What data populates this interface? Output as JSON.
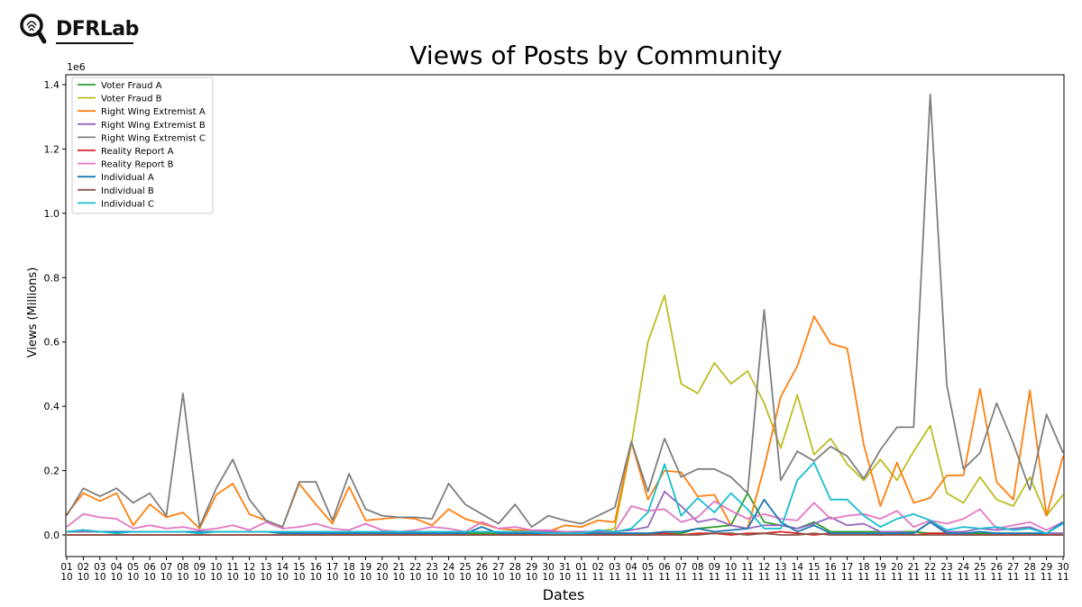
{
  "brand": {
    "name": "DFRLab"
  },
  "chart_data": {
    "type": "line",
    "title": "Views of Posts by Community",
    "xlabel": "Dates",
    "ylabel": "Views (Millions)",
    "y_offset_label": "1e6",
    "ylim": [
      0,
      1.42
    ],
    "yticks": [
      "0.0",
      "0.2",
      "0.4",
      "0.6",
      "0.8",
      "1.0",
      "1.2",
      "1.4"
    ],
    "ytick_values": [
      0,
      0.2,
      0.4,
      0.6,
      0.8,
      1.0,
      1.2,
      1.4
    ],
    "legend_position": "top-left",
    "grid": false,
    "categories": [
      "01\n10",
      "02\n10",
      "03\n10",
      "04\n10",
      "05\n10",
      "06\n10",
      "07\n10",
      "08\n10",
      "09\n10",
      "10\n10",
      "11\n10",
      "12\n10",
      "13\n10",
      "14\n10",
      "15\n10",
      "16\n10",
      "17\n10",
      "18\n10",
      "19\n10",
      "20\n10",
      "21\n10",
      "22\n10",
      "23\n10",
      "24\n10",
      "25\n10",
      "26\n10",
      "27\n10",
      "28\n10",
      "29\n10",
      "30\n10",
      "31\n10",
      "01\n11",
      "02\n11",
      "03\n11",
      "04\n11",
      "05\n11",
      "06\n11",
      "07\n11",
      "08\n11",
      "09\n11",
      "10\n11",
      "11\n11",
      "12\n11",
      "13\n11",
      "14\n11",
      "15\n11",
      "16\n11",
      "17\n11",
      "18\n11",
      "19\n11",
      "20\n11",
      "21\n11",
      "22\n11",
      "23\n11",
      "24\n11",
      "25\n11",
      "26\n11",
      "27\n11",
      "28\n11",
      "29\n11",
      "30\n11"
    ],
    "series": [
      {
        "name": "Voter Fraud A",
        "color": "#2ca02c",
        "values": [
          0.01,
          0.01,
          0.01,
          0.01,
          0.01,
          0.01,
          0.01,
          0.01,
          0.005,
          0.01,
          0.01,
          0.01,
          0.01,
          0.005,
          0.01,
          0.01,
          0.01,
          0.01,
          0.01,
          0.005,
          0.005,
          0.005,
          0.005,
          0.005,
          0.005,
          0.005,
          0.005,
          0.005,
          0.005,
          0.005,
          0.005,
          0.005,
          0.005,
          0.005,
          0.005,
          0.005,
          0.005,
          0.005,
          0.02,
          0.025,
          0.03,
          0.13,
          0.04,
          0.03,
          0.02,
          0.04,
          0.01,
          0.01,
          0.01,
          0.01,
          0.01,
          0.01,
          0.005,
          0.005,
          0.005,
          0.005,
          0.005,
          0.005,
          0.005,
          0.005,
          0.005
        ]
      },
      {
        "name": "Voter Fraud B",
        "color": "#bcbd22",
        "values": [
          0.01,
          0.01,
          0.01,
          0.01,
          0.01,
          0.01,
          0.01,
          0.01,
          0.01,
          0.01,
          0.01,
          0.01,
          0.01,
          0.01,
          0.01,
          0.01,
          0.01,
          0.01,
          0.01,
          0.01,
          0.01,
          0.01,
          0.01,
          0.01,
          0.01,
          0.01,
          0.01,
          0.01,
          0.01,
          0.01,
          0.01,
          0.01,
          0.01,
          0.02,
          0.28,
          0.6,
          0.745,
          0.47,
          0.44,
          0.535,
          0.47,
          0.51,
          0.41,
          0.27,
          0.435,
          0.25,
          0.3,
          0.22,
          0.17,
          0.235,
          0.17,
          0.26,
          0.34,
          0.13,
          0.1,
          0.18,
          0.11,
          0.09,
          0.18,
          0.06,
          0.125
        ]
      },
      {
        "name": "Right Wing Extremist A",
        "color": "#ff7f0e",
        "values": [
          0.065,
          0.13,
          0.105,
          0.13,
          0.03,
          0.095,
          0.055,
          0.07,
          0.02,
          0.125,
          0.16,
          0.065,
          0.045,
          0.025,
          0.16,
          0.095,
          0.035,
          0.15,
          0.045,
          0.05,
          0.055,
          0.05,
          0.03,
          0.08,
          0.05,
          0.035,
          0.02,
          0.015,
          0.015,
          0.01,
          0.03,
          0.025,
          0.045,
          0.04,
          0.29,
          0.11,
          0.2,
          0.195,
          0.12,
          0.125,
          0.03,
          0.02,
          0.21,
          0.43,
          0.525,
          0.68,
          0.595,
          0.58,
          0.28,
          0.09,
          0.225,
          0.1,
          0.115,
          0.185,
          0.185,
          0.455,
          0.165,
          0.11,
          0.45,
          0.06,
          0.245
        ]
      },
      {
        "name": "Right Wing Extremist B",
        "color": "#9467bd",
        "values": [
          0.01,
          0.01,
          0.01,
          0.01,
          0.01,
          0.01,
          0.01,
          0.01,
          0.01,
          0.01,
          0.01,
          0.01,
          0.01,
          0.01,
          0.01,
          0.01,
          0.01,
          0.01,
          0.01,
          0.01,
          0.01,
          0.01,
          0.01,
          0.01,
          0.01,
          0.01,
          0.01,
          0.01,
          0.01,
          0.01,
          0.01,
          0.01,
          0.01,
          0.01,
          0.015,
          0.025,
          0.135,
          0.09,
          0.04,
          0.05,
          0.03,
          0.02,
          0.03,
          0.03,
          0.02,
          0.035,
          0.055,
          0.03,
          0.035,
          0.01,
          0.01,
          0.005,
          0.04,
          0.01,
          0.01,
          0.02,
          0.015,
          0.02,
          0.025,
          0.005,
          0.005
        ]
      },
      {
        "name": "Right Wing Extremist C",
        "color": "#7f7f7f",
        "values": [
          0.06,
          0.145,
          0.12,
          0.145,
          0.1,
          0.13,
          0.06,
          0.44,
          0.025,
          0.145,
          0.235,
          0.11,
          0.045,
          0.025,
          0.165,
          0.165,
          0.045,
          0.19,
          0.08,
          0.06,
          0.055,
          0.055,
          0.05,
          0.16,
          0.095,
          0.065,
          0.035,
          0.095,
          0.025,
          0.06,
          0.045,
          0.035,
          0.06,
          0.085,
          0.29,
          0.135,
          0.3,
          0.18,
          0.205,
          0.205,
          0.18,
          0.13,
          0.7,
          0.17,
          0.26,
          0.23,
          0.275,
          0.245,
          0.175,
          0.265,
          0.335,
          0.335,
          1.37,
          0.465,
          0.205,
          0.255,
          0.41,
          0.285,
          0.14,
          0.375,
          0.255
        ]
      },
      {
        "name": "Reality Report A",
        "color": "#d62728",
        "values": [
          0.0,
          0.0,
          0.0,
          0.0,
          0.0,
          0.0,
          0.0,
          0.0,
          0.0,
          0.0,
          0.0,
          0.0,
          0.0,
          0.0,
          0.0,
          0.0,
          0.0,
          0.0,
          0.0,
          0.0,
          0.0,
          0.0,
          0.0,
          0.0,
          0.0,
          0.0,
          0.0,
          0.0,
          0.0,
          0.0,
          0.0,
          0.0,
          0.0,
          0.0,
          0.0,
          0.0,
          0.005,
          0.0,
          0.005,
          0.005,
          0.0,
          0.005,
          0.005,
          0.01,
          0.005,
          0.0,
          0.005,
          0.005,
          0.005,
          0.0,
          0.005,
          0.0,
          0.005,
          0.005,
          0.0,
          0.0,
          0.0,
          0.0,
          0.0,
          0.0,
          0.0
        ]
      },
      {
        "name": "Reality Report B",
        "color": "#e377c2",
        "values": [
          0.025,
          0.065,
          0.055,
          0.05,
          0.02,
          0.03,
          0.02,
          0.025,
          0.015,
          0.02,
          0.03,
          0.015,
          0.04,
          0.02,
          0.025,
          0.035,
          0.02,
          0.015,
          0.035,
          0.015,
          0.01,
          0.015,
          0.025,
          0.02,
          0.01,
          0.04,
          0.02,
          0.025,
          0.015,
          0.015,
          0.01,
          0.005,
          0.005,
          0.01,
          0.09,
          0.075,
          0.08,
          0.04,
          0.055,
          0.105,
          0.075,
          0.05,
          0.065,
          0.05,
          0.045,
          0.1,
          0.05,
          0.06,
          0.065,
          0.05,
          0.075,
          0.025,
          0.045,
          0.035,
          0.05,
          0.08,
          0.02,
          0.03,
          0.04,
          0.015,
          0.04
        ]
      },
      {
        "name": "Individual A",
        "color": "#1f77b4",
        "values": [
          0.01,
          0.015,
          0.01,
          0.01,
          0.01,
          0.01,
          0.01,
          0.01,
          0.01,
          0.01,
          0.01,
          0.01,
          0.01,
          0.005,
          0.005,
          0.005,
          0.005,
          0.005,
          0.005,
          0.005,
          0.005,
          0.005,
          0.005,
          0.005,
          0.005,
          0.025,
          0.005,
          0.005,
          0.005,
          0.005,
          0.005,
          0.005,
          0.005,
          0.005,
          0.005,
          0.005,
          0.01,
          0.01,
          0.02,
          0.01,
          0.015,
          0.02,
          0.11,
          0.04,
          0.01,
          0.03,
          0.005,
          0.005,
          0.005,
          0.005,
          0.005,
          0.005,
          0.04,
          0.005,
          0.005,
          0.01,
          0.005,
          0.005,
          0.005,
          0.005,
          0.04
        ]
      },
      {
        "name": "Individual B",
        "color": "#8c564b",
        "values": [
          0.0,
          0.0,
          0.0,
          0.0,
          0.0,
          0.0,
          0.0,
          0.0,
          0.0,
          0.0,
          0.0,
          0.0,
          0.0,
          0.0,
          0.0,
          0.0,
          0.0,
          0.0,
          0.0,
          0.0,
          0.0,
          0.0,
          0.0,
          0.0,
          0.0,
          0.0,
          0.0,
          0.0,
          0.0,
          0.0,
          0.0,
          0.0,
          0.0,
          0.0,
          0.0,
          0.0,
          0.0,
          0.0,
          0.0,
          0.005,
          0.005,
          0.0,
          0.005,
          0.0,
          0.0,
          0.005,
          0.0,
          0.0,
          0.0,
          0.0,
          0.0,
          0.0,
          0.0,
          0.0,
          0.0,
          0.0,
          0.0,
          0.0,
          0.0,
          0.0,
          0.0
        ]
      },
      {
        "name": "Individual C",
        "color": "#17becf",
        "values": [
          0.01,
          0.015,
          0.01,
          0.005,
          0.01,
          0.01,
          0.01,
          0.01,
          0.005,
          0.01,
          0.01,
          0.01,
          0.01,
          0.01,
          0.01,
          0.01,
          0.01,
          0.01,
          0.01,
          0.01,
          0.01,
          0.01,
          0.01,
          0.01,
          0.01,
          0.01,
          0.01,
          0.01,
          0.01,
          0.005,
          0.005,
          0.005,
          0.015,
          0.01,
          0.02,
          0.07,
          0.22,
          0.06,
          0.115,
          0.07,
          0.13,
          0.08,
          0.02,
          0.02,
          0.17,
          0.225,
          0.11,
          0.11,
          0.06,
          0.025,
          0.05,
          0.065,
          0.045,
          0.015,
          0.025,
          0.02,
          0.025,
          0.015,
          0.02,
          0.005,
          0.035
        ]
      }
    ]
  }
}
